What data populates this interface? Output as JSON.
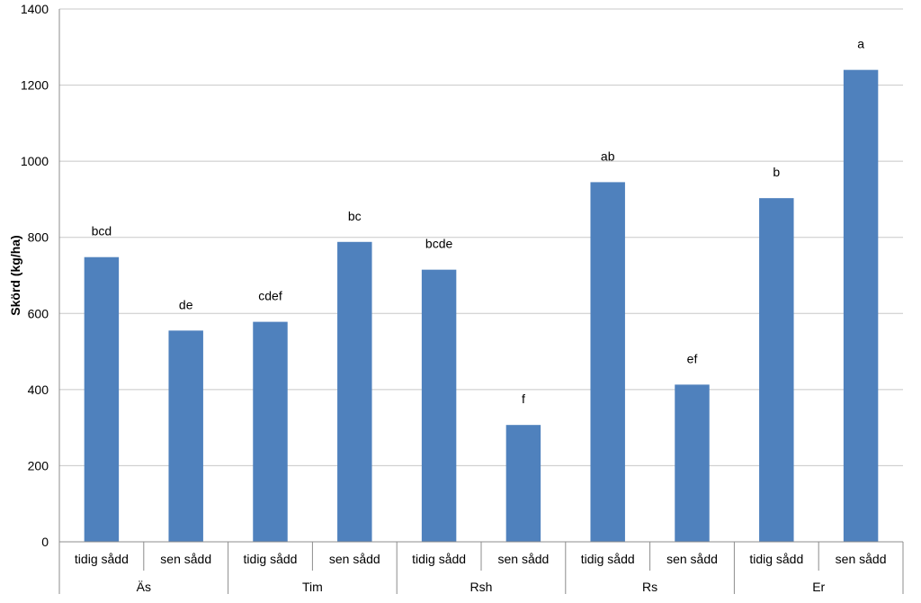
{
  "chart_data": {
    "type": "bar",
    "title": "",
    "xlabel": "",
    "ylabel": "Skörd (kg/ha)",
    "ylim": [
      0,
      1400
    ],
    "yticks": [
      0,
      200,
      400,
      600,
      800,
      1000,
      1200,
      1400
    ],
    "grid": true,
    "legend": "none",
    "bar_color": "#4f81bd",
    "groups": [
      {
        "label": "Äs",
        "categories": [
          "tidig sådd",
          "sen sådd"
        ],
        "values": [
          748,
          555
        ],
        "letters": [
          "bcd",
          "de"
        ]
      },
      {
        "label": "Tim",
        "categories": [
          "tidig sådd",
          "sen sådd"
        ],
        "values": [
          578,
          788
        ],
        "letters": [
          "cdef",
          "bc"
        ]
      },
      {
        "label": "Rsh",
        "categories": [
          "tidig sådd",
          "sen sådd"
        ],
        "values": [
          715,
          307
        ],
        "letters": [
          "bcde",
          "f"
        ]
      },
      {
        "label": "Rs",
        "categories": [
          "tidig sådd",
          "sen sådd"
        ],
        "values": [
          945,
          413
        ],
        "letters": [
          "ab",
          "ef"
        ]
      },
      {
        "label": "Er",
        "categories": [
          "tidig sådd",
          "sen sådd"
        ],
        "values": [
          903,
          1240
        ],
        "letters": [
          "b",
          "a"
        ]
      }
    ]
  }
}
